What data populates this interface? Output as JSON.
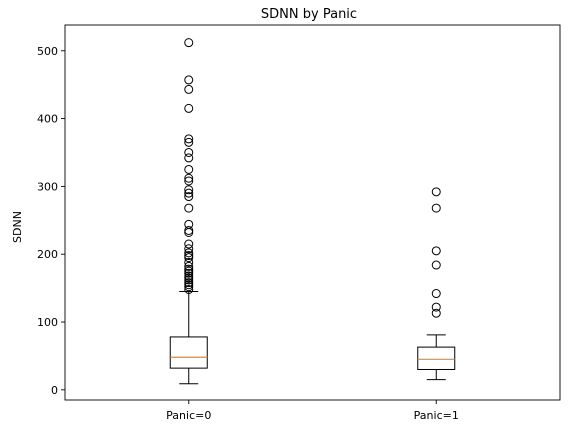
{
  "chart_data": {
    "type": "boxplot",
    "title": "SDNN by Panic",
    "xlabel": "",
    "ylabel": "SDNN",
    "categories": [
      "Panic=0",
      "Panic=1"
    ],
    "ylim": [
      -15,
      538
    ],
    "yticks": [
      0,
      100,
      200,
      300,
      400,
      500
    ],
    "grid": false,
    "boxes": [
      {
        "category": "Panic=0",
        "whisker_low": 9,
        "q1": 32,
        "median": 48,
        "q3": 78,
        "whisker_high": 145,
        "outliers": [
          148,
          152,
          155,
          158,
          162,
          165,
          168,
          172,
          175,
          178,
          182,
          188,
          195,
          198,
          202,
          208,
          215,
          232,
          235,
          244,
          268,
          285,
          290,
          295,
          308,
          312,
          325,
          342,
          350,
          365,
          370,
          415,
          443,
          457,
          512
        ]
      },
      {
        "category": "Panic=1",
        "whisker_low": 15,
        "q1": 30,
        "median": 45,
        "q3": 63,
        "whisker_high": 81,
        "outliers": [
          113,
          122,
          142,
          184,
          205,
          268,
          292
        ]
      }
    ],
    "colors": {
      "box": "#000000",
      "median": "#ff7f0e",
      "outlier": "#000000"
    }
  }
}
